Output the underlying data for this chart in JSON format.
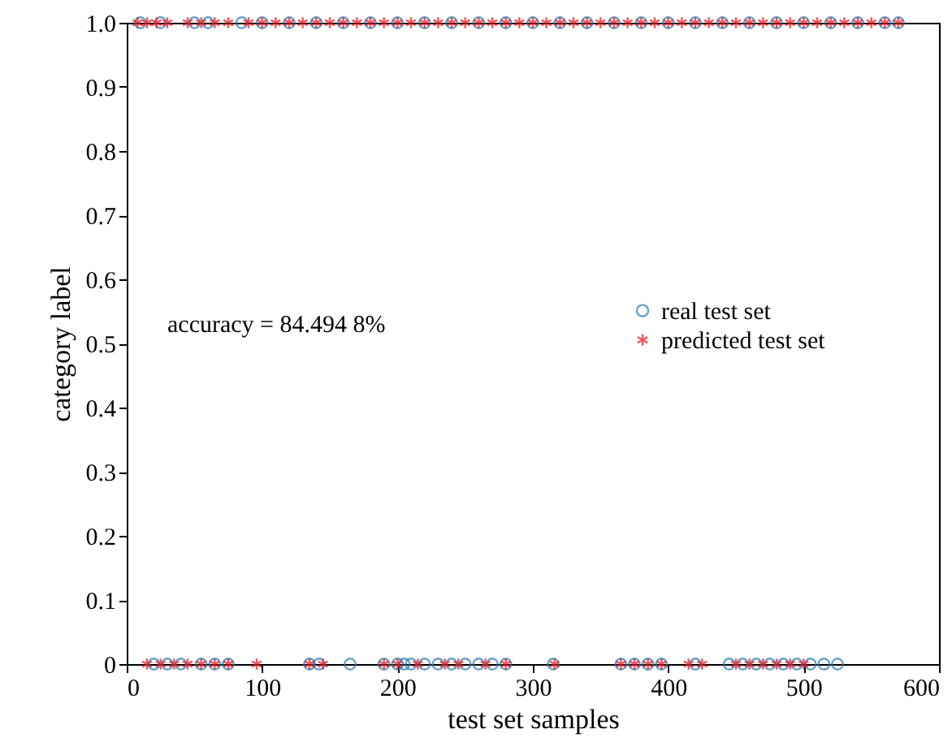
{
  "chart_data": {
    "type": "scatter",
    "xlabel": "test set samples",
    "ylabel": "category label",
    "xlim": [
      0,
      600
    ],
    "xticks": [
      0,
      100,
      200,
      300,
      400,
      500,
      600
    ],
    "ylim": [
      0,
      1
    ],
    "yticks": [
      0,
      0.1,
      0.2,
      0.3,
      0.4,
      0.5,
      0.6,
      0.7,
      0.8,
      0.9,
      {
        "value": 1,
        "label": "1.0"
      }
    ],
    "grid": false,
    "legend": "right",
    "annotations": [
      "accuracy = 84.494 8%"
    ],
    "series": [
      {
        "name": "real test set",
        "color": "#2a7ab0",
        "marker": "circle",
        "x": [
          20,
          30,
          40,
          55,
          65,
          75,
          135,
          142,
          165,
          190,
          200,
          205,
          210,
          220,
          230,
          240,
          250,
          260,
          270,
          280,
          315,
          365,
          375,
          385,
          395,
          420,
          445,
          455,
          465,
          475,
          485,
          495,
          505,
          515,
          525,
          10,
          25,
          50,
          60,
          85,
          100,
          120,
          140,
          160,
          180,
          200,
          220,
          240,
          260,
          280,
          300,
          320,
          340,
          360,
          380,
          400,
          420,
          440,
          460,
          480,
          500,
          520,
          540,
          560,
          570
        ],
        "values": [
          0,
          0,
          0,
          0,
          0,
          0,
          0,
          0,
          0,
          0,
          0,
          0,
          0,
          0,
          0,
          0,
          0,
          0,
          0,
          0,
          0,
          0,
          0,
          0,
          0,
          0,
          0,
          0,
          0,
          0,
          0,
          0,
          0,
          0,
          0,
          1,
          1,
          1,
          1,
          1,
          1,
          1,
          1,
          1,
          1,
          1,
          1,
          1,
          1,
          1,
          1,
          1,
          1,
          1,
          1,
          1,
          1,
          1,
          1,
          1,
          1,
          1,
          1,
          1,
          1
        ]
      },
      {
        "name": "predicted test set",
        "color": "#e8141e",
        "marker": "cross",
        "x": [
          15,
          25,
          35,
          45,
          55,
          65,
          75,
          96,
          135,
          145,
          190,
          200,
          215,
          235,
          245,
          265,
          280,
          316,
          365,
          375,
          385,
          395,
          415,
          425,
          450,
          460,
          470,
          480,
          490,
          500,
          8,
          15,
          22,
          30,
          45,
          55,
          65,
          75,
          90,
          100,
          110,
          120,
          130,
          140,
          150,
          160,
          170,
          180,
          190,
          200,
          210,
          220,
          230,
          240,
          250,
          260,
          270,
          280,
          290,
          300,
          310,
          320,
          330,
          340,
          350,
          360,
          370,
          380,
          390,
          400,
          410,
          420,
          430,
          440,
          450,
          460,
          470,
          480,
          490,
          500,
          510,
          520,
          530,
          540,
          550,
          560,
          570
        ],
        "values": [
          0,
          0,
          0,
          0,
          0,
          0,
          0,
          0,
          0,
          0,
          0,
          0,
          0,
          0,
          0,
          0,
          0,
          0,
          0,
          0,
          0,
          0,
          0,
          0,
          0,
          0,
          0,
          0,
          0,
          0,
          1,
          1,
          1,
          1,
          1,
          1,
          1,
          1,
          1,
          1,
          1,
          1,
          1,
          1,
          1,
          1,
          1,
          1,
          1,
          1,
          1,
          1,
          1,
          1,
          1,
          1,
          1,
          1,
          1,
          1,
          1,
          1,
          1,
          1,
          1,
          1,
          1,
          1,
          1,
          1,
          1,
          1,
          1,
          1,
          1,
          1,
          1,
          1,
          1,
          1,
          1,
          1,
          1,
          1,
          1,
          1,
          1
        ]
      }
    ]
  }
}
